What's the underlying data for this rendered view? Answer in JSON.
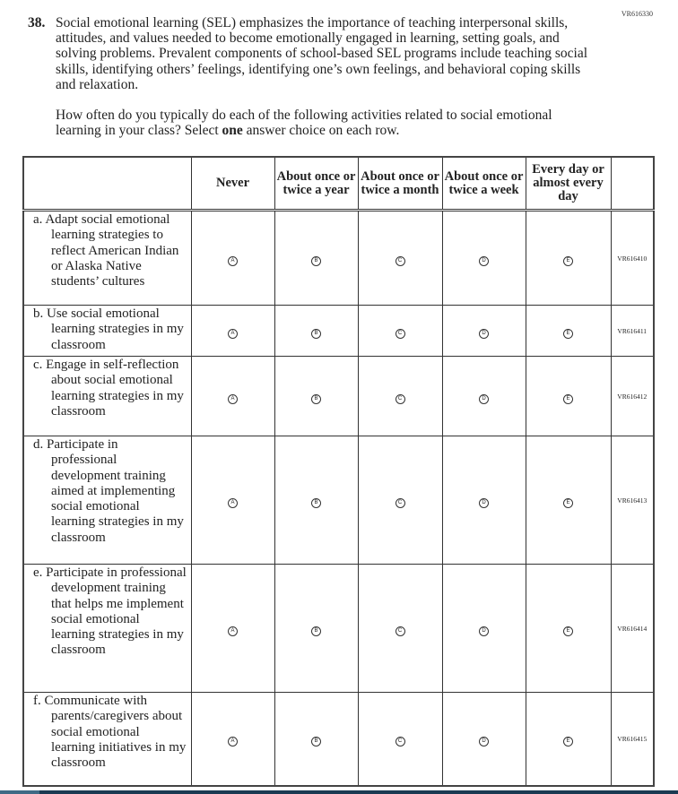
{
  "page_code": "VR616330",
  "question": {
    "number": "38.",
    "intro": "Social emotional learning (SEL) emphasizes the importance of teaching interpersonal skills, attitudes, and values needed to become emotionally engaged in learning, setting goals, and solving problems. Prevalent components of school-based SEL programs include teaching social skills, identifying others’ feelings, identifying one’s own feelings, and behavioral coping skills and relaxation.",
    "prompt_before": "How often do you typically do each of the following activities related to social emotional learning in your class? Select ",
    "prompt_bold": "one",
    "prompt_after": " answer choice on each row."
  },
  "columns": [
    "Never",
    "About once or twice a year",
    "About once or twice a month",
    "About once or twice a week",
    "Every day or almost every day"
  ],
  "bubbles": [
    "A",
    "B",
    "C",
    "D",
    "E"
  ],
  "rows": [
    {
      "label": "a. Adapt social emotional learning strategies to reflect American Indian or Alaska Native students’ cultures",
      "code": "VR616410"
    },
    {
      "label": "b. Use social emotional learning strategies in my classroom",
      "code": "VR616411"
    },
    {
      "label": "c. Engage in self-reflection about social emotional learning strategies in my classroom",
      "code": "VR616412"
    },
    {
      "label": "d. Participate in professional development training aimed at implementing social emotional learning strategies in my classroom",
      "code": "VR616413"
    },
    {
      "label": "e. Participate in professional development training that helps me implement social emotional learning strategies in my classroom",
      "code": "VR616414"
    },
    {
      "label": "f. Communicate with parents/caregivers about social emotional learning initiatives in my classroom",
      "code": "VR616415"
    }
  ]
}
